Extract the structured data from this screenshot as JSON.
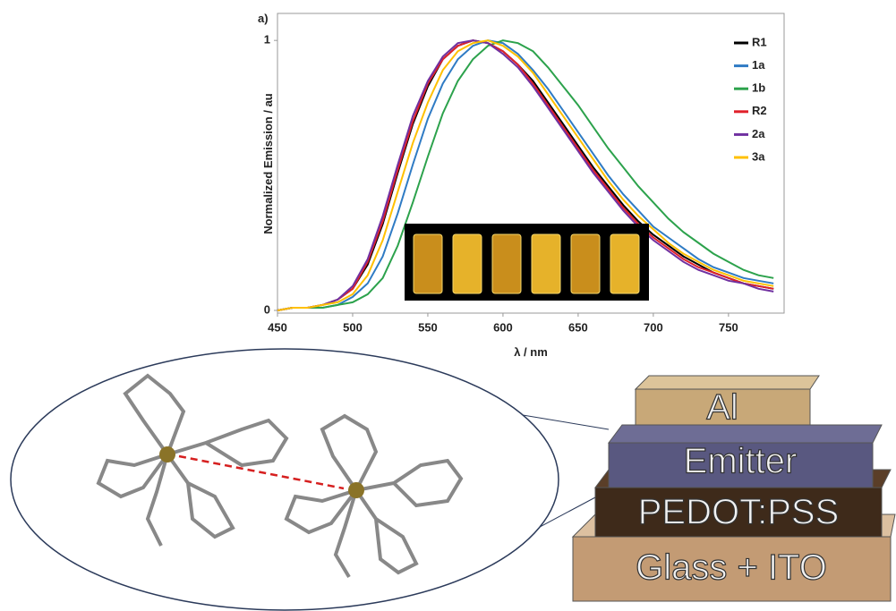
{
  "chart_data": {
    "type": "line",
    "panel_label": "a)",
    "x_label": "λ / nm",
    "y_label": "Normalized Emission / au",
    "x": [
      450,
      460,
      470,
      480,
      490,
      500,
      510,
      520,
      530,
      540,
      550,
      560,
      570,
      580,
      590,
      600,
      610,
      620,
      630,
      640,
      650,
      660,
      670,
      680,
      690,
      700,
      710,
      720,
      730,
      740,
      750,
      760,
      770,
      780
    ],
    "series": [
      {
        "name": "R1",
        "color": "#000000",
        "values": [
          0,
          0.01,
          0.01,
          0.02,
          0.04,
          0.08,
          0.17,
          0.32,
          0.51,
          0.69,
          0.83,
          0.93,
          0.98,
          1.0,
          0.99,
          0.96,
          0.91,
          0.85,
          0.77,
          0.69,
          0.61,
          0.53,
          0.46,
          0.39,
          0.33,
          0.28,
          0.24,
          0.2,
          0.17,
          0.14,
          0.12,
          0.1,
          0.09,
          0.08
        ]
      },
      {
        "name": "1a",
        "color": "#2f7bc4",
        "values": [
          0,
          0.01,
          0.01,
          0.01,
          0.02,
          0.05,
          0.1,
          0.2,
          0.36,
          0.54,
          0.71,
          0.84,
          0.93,
          0.98,
          1.0,
          0.99,
          0.95,
          0.89,
          0.82,
          0.74,
          0.66,
          0.58,
          0.5,
          0.43,
          0.37,
          0.31,
          0.27,
          0.23,
          0.19,
          0.16,
          0.14,
          0.12,
          0.11,
          0.1
        ]
      },
      {
        "name": "1b",
        "color": "#2ca24c",
        "values": [
          0,
          0.01,
          0.01,
          0.01,
          0.02,
          0.03,
          0.06,
          0.12,
          0.24,
          0.4,
          0.57,
          0.73,
          0.85,
          0.93,
          0.98,
          1.0,
          0.99,
          0.96,
          0.9,
          0.83,
          0.76,
          0.68,
          0.6,
          0.53,
          0.46,
          0.4,
          0.34,
          0.29,
          0.25,
          0.21,
          0.18,
          0.15,
          0.13,
          0.12
        ]
      },
      {
        "name": "R2",
        "color": "#e0202a",
        "values": [
          0,
          0.01,
          0.01,
          0.02,
          0.04,
          0.08,
          0.18,
          0.33,
          0.52,
          0.7,
          0.84,
          0.93,
          0.98,
          1.0,
          0.99,
          0.96,
          0.91,
          0.84,
          0.76,
          0.68,
          0.6,
          0.52,
          0.45,
          0.38,
          0.32,
          0.27,
          0.23,
          0.19,
          0.16,
          0.14,
          0.12,
          0.1,
          0.09,
          0.08
        ]
      },
      {
        "name": "2a",
        "color": "#7030a0",
        "values": [
          0,
          0.01,
          0.01,
          0.02,
          0.04,
          0.09,
          0.19,
          0.35,
          0.54,
          0.72,
          0.85,
          0.94,
          0.99,
          1.0,
          0.99,
          0.95,
          0.9,
          0.83,
          0.75,
          0.67,
          0.59,
          0.51,
          0.44,
          0.37,
          0.31,
          0.26,
          0.22,
          0.18,
          0.15,
          0.13,
          0.11,
          0.1,
          0.08,
          0.07
        ]
      },
      {
        "name": "3a",
        "color": "#ffc000",
        "values": [
          0,
          0.01,
          0.01,
          0.02,
          0.03,
          0.06,
          0.13,
          0.26,
          0.44,
          0.62,
          0.77,
          0.89,
          0.96,
          0.99,
          1.0,
          0.98,
          0.94,
          0.88,
          0.8,
          0.72,
          0.64,
          0.56,
          0.48,
          0.41,
          0.35,
          0.3,
          0.25,
          0.21,
          0.18,
          0.15,
          0.13,
          0.11,
          0.1,
          0.09
        ]
      }
    ],
    "xlim": [
      450,
      787
    ],
    "ylim": [
      -0.01,
      1.1
    ],
    "xticks": [
      450,
      500,
      550,
      600,
      650,
      700,
      750
    ],
    "yticks": [
      0,
      1
    ],
    "grid": false,
    "legend": "top-right"
  },
  "device": {
    "layers": [
      "Al",
      "Emitter",
      "PEDOT:PSS",
      "Glass + ITO"
    ]
  }
}
